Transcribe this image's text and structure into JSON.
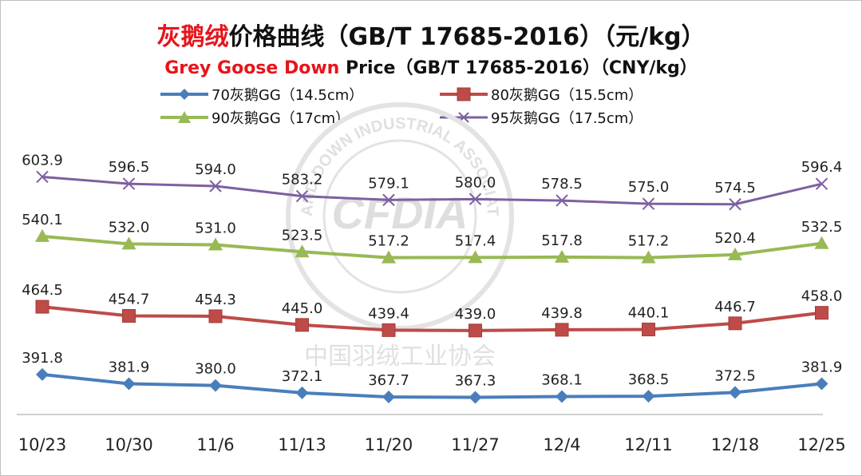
{
  "chart_data": {
    "type": "line",
    "title_red": "灰鹅绒",
    "title_rest": "价格曲线（GB/T 17685-2016）（元/kg）",
    "subtitle_red": "Grey Goose Down",
    "subtitle_rest": " Price（GB/T 17685-2016）（CNY/kg）",
    "categories": [
      "10/23",
      "10/30",
      "11/6",
      "11/13",
      "11/20",
      "11/27",
      "12/4",
      "12/11",
      "12/18",
      "12/25"
    ],
    "ylim": [
      300,
      660
    ],
    "grid": false,
    "legend_position": "top",
    "series": [
      {
        "name": "70灰鹅GG（14.5cm）",
        "marker": "diamond",
        "color": "#4a7ebb",
        "values": [
          391.8,
          381.9,
          380.0,
          372.1,
          367.7,
          367.3,
          368.1,
          368.5,
          372.5,
          381.9
        ]
      },
      {
        "name": "80灰鹅GG（15.5cm）",
        "marker": "square",
        "color": "#be4b48",
        "values": [
          464.5,
          454.7,
          454.3,
          445.0,
          439.4,
          439.0,
          439.8,
          440.1,
          446.7,
          458.0
        ]
      },
      {
        "name": "90灰鹅GG（17cm）",
        "marker": "triangle",
        "color": "#98b954",
        "values": [
          540.1,
          532.0,
          531.0,
          523.5,
          517.2,
          517.4,
          517.8,
          517.2,
          520.4,
          532.5
        ]
      },
      {
        "name": "95灰鹅GG（17.5cm）",
        "marker": "x",
        "color": "#7d60a0",
        "values": [
          603.9,
          596.5,
          594.0,
          583.2,
          579.1,
          580.0,
          578.5,
          575.0,
          574.5,
          596.4
        ]
      }
    ]
  },
  "watermark": {
    "logo_text": "CFDIA",
    "ring_text": "AND DOWN INDUSTRIAL ASSOCIATION",
    "bottom_text": "中国羽绒工业协会",
    "color": "#d9d9d9"
  }
}
